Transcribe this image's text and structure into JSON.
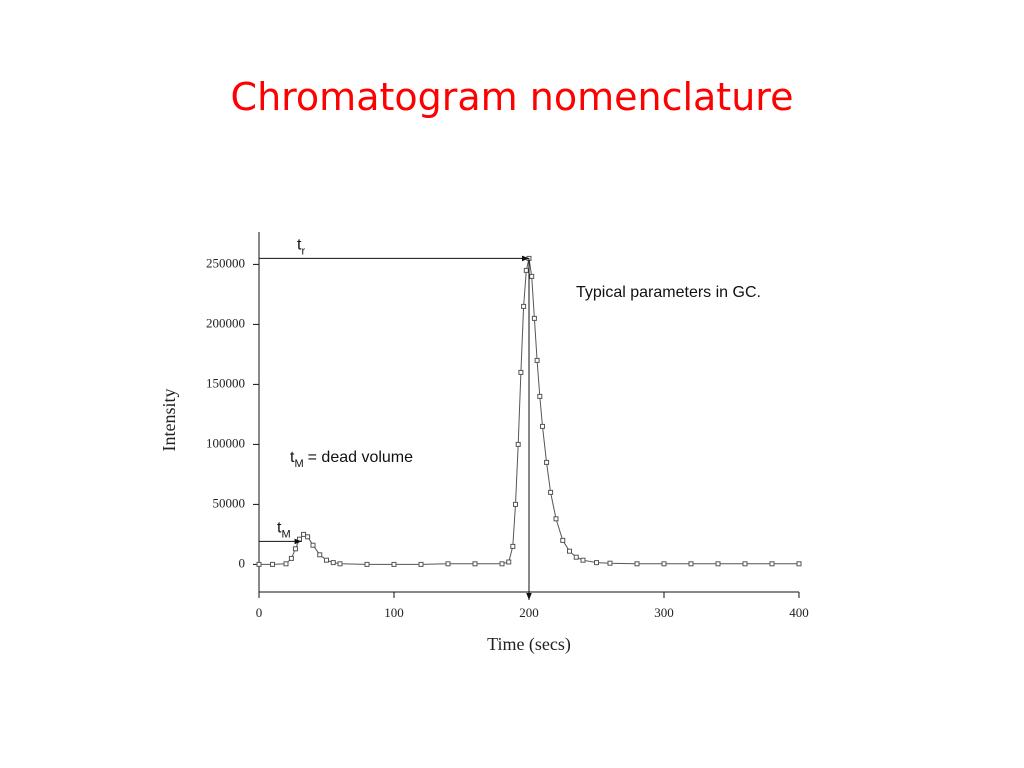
{
  "title": "Chromatogram nomenclature",
  "chart_data": {
    "type": "line",
    "x_label": "Time (secs)",
    "y_label": "Intensity",
    "x": [
      0,
      10,
      20,
      24,
      27,
      30,
      33,
      36,
      40,
      45,
      50,
      55,
      60,
      80,
      100,
      120,
      140,
      160,
      180,
      185,
      188,
      190,
      192,
      194,
      196,
      198,
      200,
      202,
      204,
      206,
      208,
      210,
      213,
      216,
      220,
      225,
      230,
      235,
      240,
      250,
      260,
      280,
      300,
      320,
      340,
      360,
      380,
      400
    ],
    "series": [
      {
        "color": "#555555",
        "values": [
          0,
          0,
          500,
          5000,
          13000,
          21000,
          25000,
          23000,
          16000,
          8000,
          3500,
          1500,
          500,
          0,
          0,
          0,
          500,
          500,
          500,
          2000,
          15000,
          50000,
          100000,
          160000,
          215000,
          245000,
          255000,
          240000,
          205000,
          170000,
          140000,
          115000,
          85000,
          60000,
          38000,
          20000,
          11000,
          6000,
          3500,
          1500,
          1000,
          500,
          500,
          500,
          500,
          500,
          500,
          500
        ]
      }
    ],
    "xlim": [
      0,
      400
    ],
    "ylim": [
      -23000,
      277000
    ],
    "xticks": [
      0,
      100,
      200,
      300,
      400
    ],
    "yticks": [
      0,
      50000,
      100000,
      150000,
      200000,
      250000
    ],
    "marker": "square",
    "annotations": {
      "retention_time": {
        "text": "t",
        "subscript": "r"
      },
      "dead_time": {
        "text": "t",
        "subscript": "M"
      },
      "dead_volume": {
        "text": "t",
        "subscript": "M",
        "rest": "= dead volume"
      },
      "note": "Typical parameters in GC."
    }
  }
}
